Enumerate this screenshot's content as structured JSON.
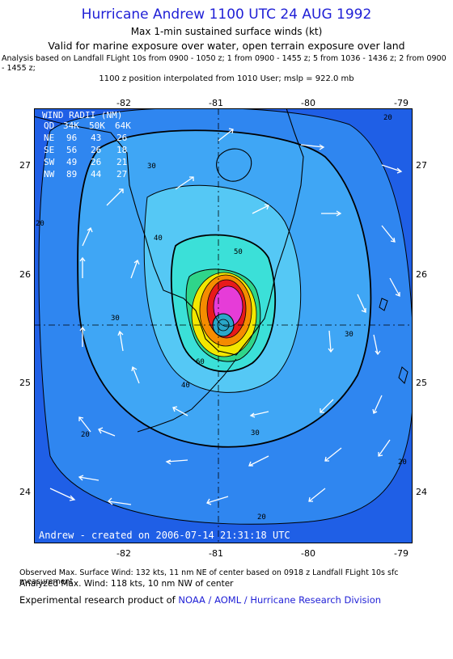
{
  "header": {
    "title": "Hurricane Andrew 1100 UTC 24 AUG 1992",
    "subtitle1": "Max 1-min sustained surface winds (kt)",
    "subtitle2": "Valid for marine exposure over water, open terrain exposure over land",
    "analysis": "Analysis based on  Landfall FLight 10s from 0900 - 1050 z;  1 from 0900 - 1455 z;  5 from 1036 - 1436 z; 2 from 0900 - 1455 z;",
    "position": "1100 z position interpolated from 1010 User; mslp = 922.0 mb"
  },
  "map": {
    "lon_ticks": [
      "-82",
      "-81",
      "-80",
      "-79"
    ],
    "lat_ticks": [
      "27",
      "26",
      "25",
      "24"
    ],
    "wind_radii": {
      "title": "WIND RADII (NM)",
      "header": [
        "QD",
        "34K",
        "50K",
        "64K"
      ],
      "rows": [
        [
          "NE",
          "96",
          "43",
          "26"
        ],
        [
          "SE",
          "56",
          "26",
          "18"
        ],
        [
          "SW",
          "49",
          "26",
          "21"
        ],
        [
          "NW",
          "89",
          "44",
          "27"
        ]
      ]
    },
    "contour_labels": [
      "20",
      "30",
      "40",
      "50",
      "30",
      "30",
      "40",
      "20",
      "20",
      "20",
      "30",
      "20",
      "60"
    ],
    "credit": "Andrew - created on 2006-07-14 21:31:18 UTC",
    "colors": {
      "outer": "#1f5fe6",
      "ring20": "#2f86f0",
      "ring30": "#3fa6f5",
      "ring40": "#55c8f5",
      "ring50": "#3be0d8",
      "ring60": "#2fd58a",
      "yellow": "#f3e700",
      "orange": "#f58c00",
      "red": "#e81a1a",
      "magenta": "#e63cd8",
      "eye": "#2aa7c9"
    }
  },
  "footer": {
    "observed": "Observed Max. Surface Wind: 132 kts, 11 nm NE of center based on 0918 z Landfall FLight 10s sfc measurement",
    "analyzed": "Analyzed Max. Wind: 118 kts, 10 nm NW of center",
    "credit_prefix": "Experimental research product of ",
    "credit_org": "NOAA / AOML / Hurricane Research Division"
  }
}
